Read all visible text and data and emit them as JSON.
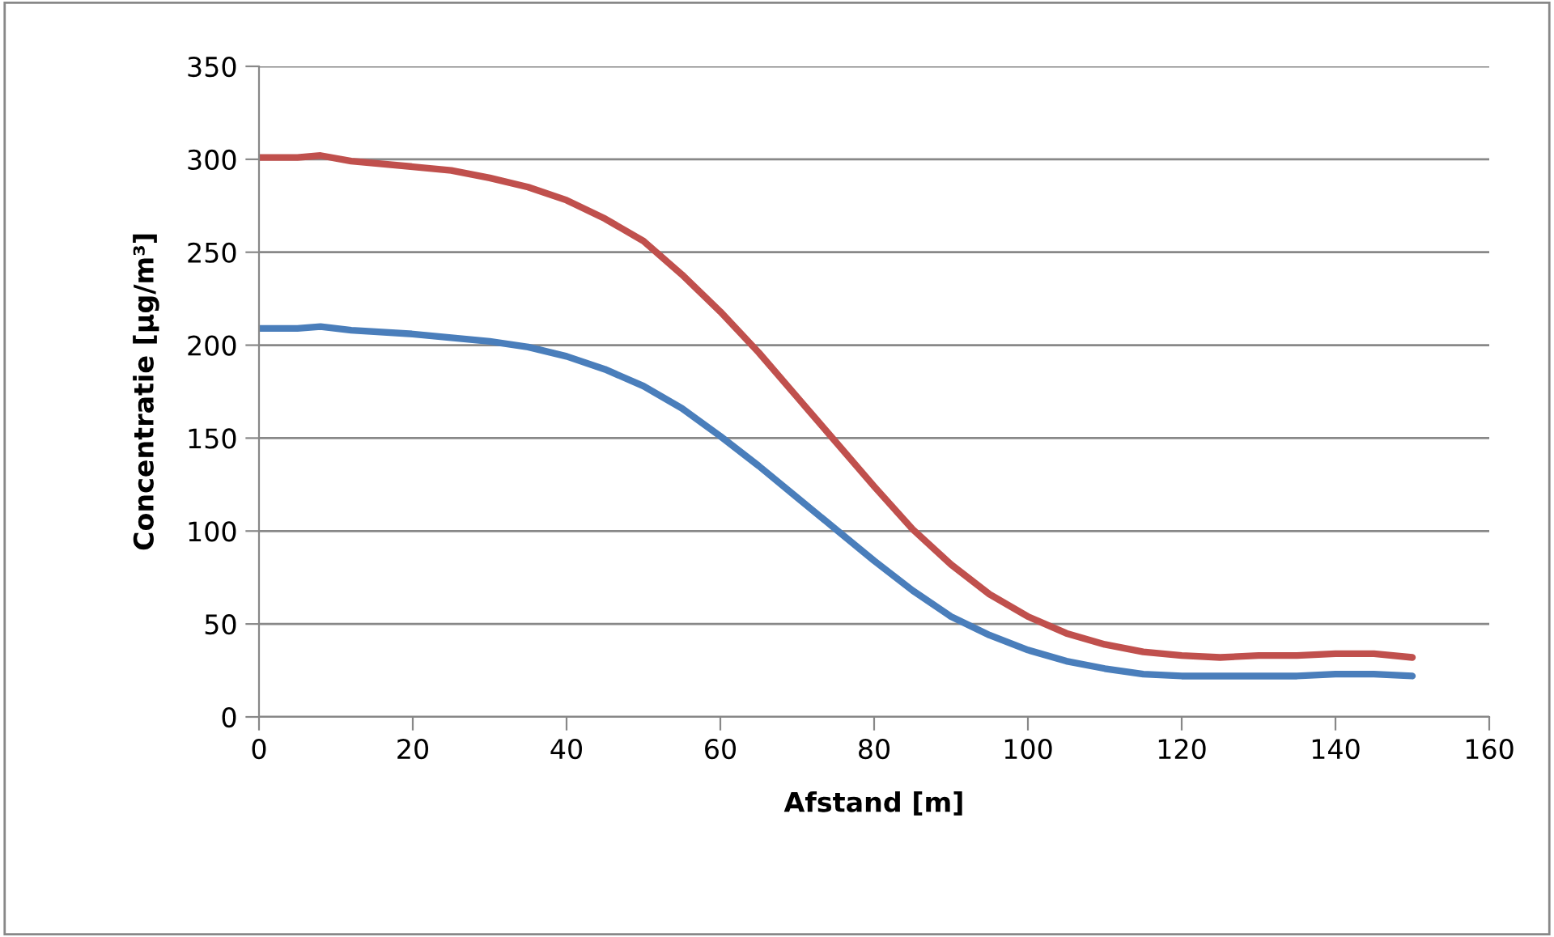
{
  "chart_data": {
    "type": "line",
    "xlabel": "Afstand [m]",
    "ylabel": "Concentratie [µg/m³]",
    "xlim": [
      0,
      160
    ],
    "xticks": [
      0,
      20,
      40,
      60,
      80,
      100,
      120,
      140,
      160
    ],
    "ylim": [
      0,
      350
    ],
    "yticks": [
      0,
      50,
      100,
      150,
      200,
      250,
      300,
      350
    ],
    "grid": "y",
    "marker": "none",
    "line_style": "solid",
    "series": [
      {
        "color": "#c0504d",
        "x": [
          0,
          5,
          8,
          12,
          20,
          25,
          30,
          35,
          40,
          45,
          50,
          55,
          60,
          65,
          70,
          75,
          80,
          85,
          90,
          95,
          100,
          105,
          110,
          115,
          120,
          125,
          130,
          135,
          140,
          145,
          150
        ],
        "values": [
          301,
          301,
          302,
          299,
          296,
          294,
          290,
          285,
          278,
          268,
          256,
          238,
          218,
          196,
          172,
          148,
          124,
          101,
          82,
          66,
          54,
          45,
          39,
          35,
          33,
          32,
          33,
          33,
          34,
          34,
          32
        ]
      },
      {
        "color": "#4a7ebb",
        "x": [
          0,
          5,
          8,
          12,
          20,
          25,
          30,
          35,
          40,
          45,
          50,
          55,
          60,
          65,
          70,
          75,
          80,
          85,
          90,
          95,
          100,
          105,
          110,
          115,
          120,
          125,
          130,
          135,
          140,
          145,
          150
        ],
        "values": [
          209,
          209,
          210,
          208,
          206,
          204,
          202,
          199,
          194,
          187,
          178,
          166,
          151,
          135,
          118,
          101,
          84,
          68,
          54,
          44,
          36,
          30,
          26,
          23,
          22,
          22,
          22,
          22,
          23,
          23,
          22
        ]
      }
    ]
  }
}
